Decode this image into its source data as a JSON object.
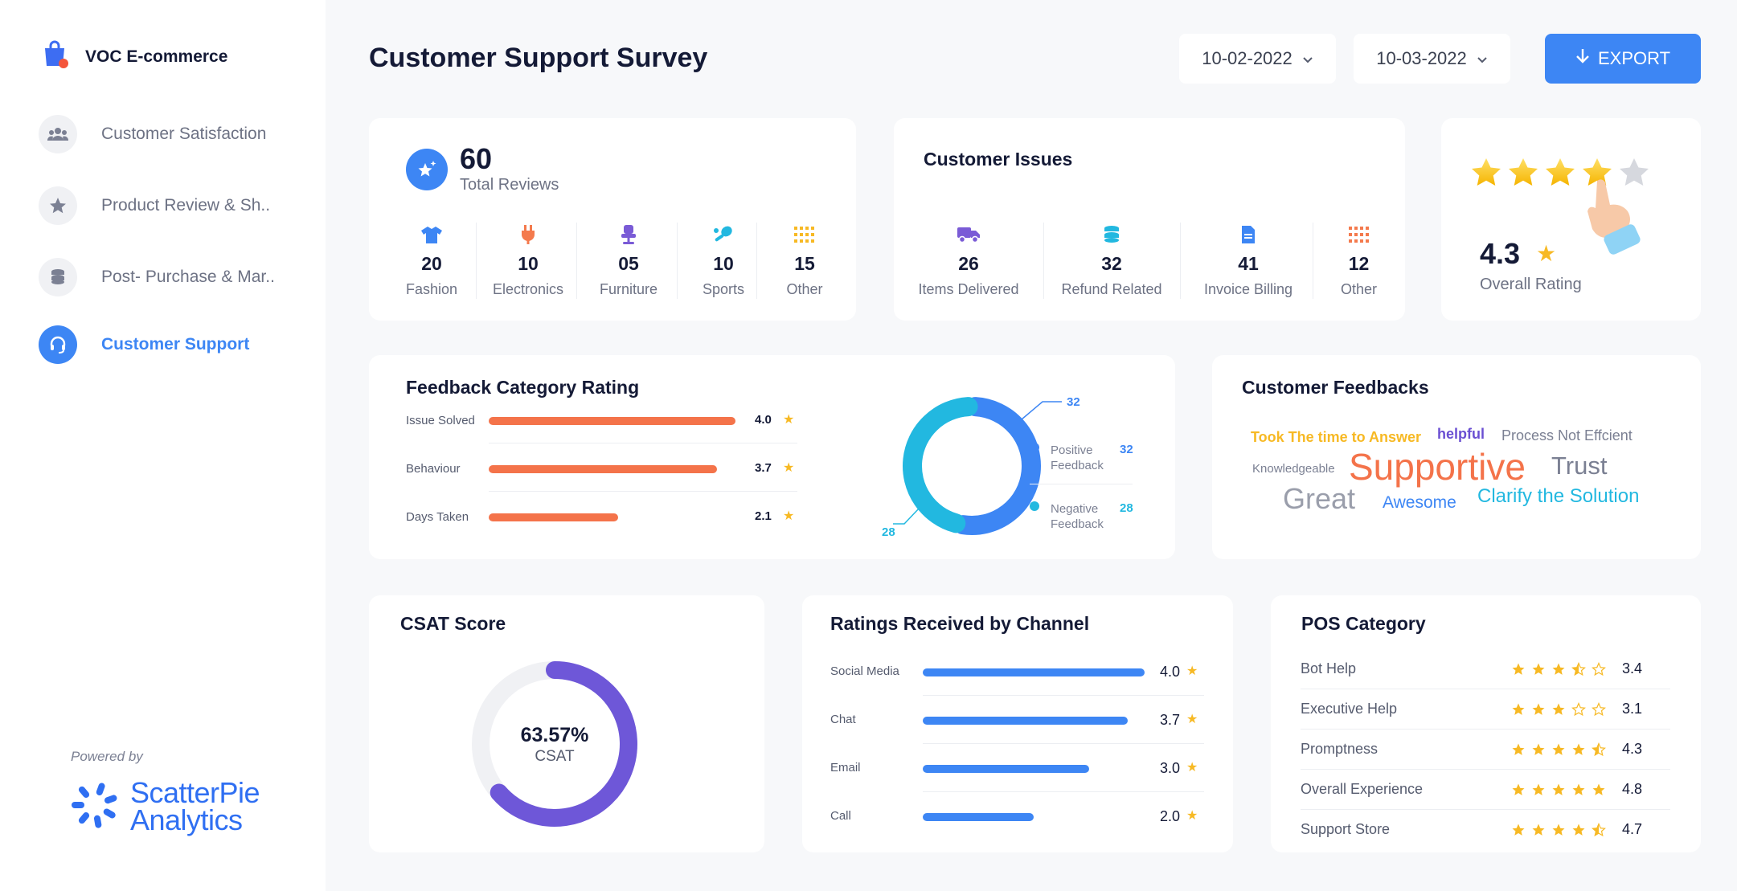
{
  "sidebar": {
    "brand": "VOC E-commerce",
    "items": [
      {
        "label": "Customer Satisfaction",
        "icon": "users-icon",
        "active": false
      },
      {
        "label": "Product Review & Sh..",
        "icon": "star-icon",
        "active": false
      },
      {
        "label": "Post- Purchase & Mar..",
        "icon": "coins-icon",
        "active": false
      },
      {
        "label": "Customer Support",
        "icon": "headset-icon",
        "active": true
      }
    ],
    "powered_by": "Powered by",
    "logo_line1": "ScatterPie",
    "logo_line2": "Analytics"
  },
  "header": {
    "title": "Customer Support Survey",
    "date_from": "10-02-2022",
    "date_to": "10-03-2022",
    "export_label": "EXPORT"
  },
  "total_reviews": {
    "value": "60",
    "label": "Total Reviews",
    "categories": [
      {
        "value": "20",
        "label": "Fashion",
        "icon": "tshirt-icon",
        "color": "#3d86f4"
      },
      {
        "value": "10",
        "label": "Electronics",
        "icon": "plug-icon",
        "color": "#f47a4d"
      },
      {
        "value": "05",
        "label": "Furniture",
        "icon": "chair-icon",
        "color": "#7a5bd6"
      },
      {
        "value": "10",
        "label": "Sports",
        "icon": "racket-icon",
        "color": "#22b8e0"
      },
      {
        "value": "15",
        "label": "Other",
        "icon": "dots-grid-icon",
        "color": "#f7b924"
      }
    ]
  },
  "customer_issues": {
    "title": "Customer Issues",
    "items": [
      {
        "value": "26",
        "label": "Items Delivered",
        "icon": "truck-icon",
        "color": "#7a5bd6"
      },
      {
        "value": "32",
        "label": "Refund Related",
        "icon": "coins-stack-icon",
        "color": "#22b8e0"
      },
      {
        "value": "41",
        "label": "Invoice Billing",
        "icon": "document-icon",
        "color": "#3d86f4"
      },
      {
        "value": "12",
        "label": "Other",
        "icon": "dots-grid-icon",
        "color": "#f47a4d"
      }
    ]
  },
  "overall_rating": {
    "value": "4.3",
    "label": "Overall Rating"
  },
  "feedback_category": {
    "title": "Feedback Category Rating",
    "bars": [
      {
        "label": "Issue Solved",
        "value": 4.0,
        "display": "4.0"
      },
      {
        "label": "Behaviour",
        "value": 3.7,
        "display": "3.7"
      },
      {
        "label": "Days Taken",
        "value": 2.1,
        "display": "2.1"
      }
    ],
    "bar_color": "#f4734a",
    "donut": {
      "positive": {
        "label": "Positive Feedback",
        "value": 32,
        "display": "32",
        "color": "#3d86f4"
      },
      "negative": {
        "label": "Negative Feedback",
        "value": 28,
        "display": "28",
        "color": "#22b8e0"
      }
    }
  },
  "customer_feedbacks": {
    "title": "Customer Feedbacks",
    "words": [
      {
        "text": "Took The time to Answer",
        "color": "#f7b924"
      },
      {
        "text": "helpful",
        "color": "#6a4fd2"
      },
      {
        "text": "Process Not Effcient",
        "color": "#7b8093"
      },
      {
        "text": "Knowledgeable",
        "color": "#7b8093"
      },
      {
        "text": "Supportive",
        "color": "#f4734a"
      },
      {
        "text": "Trust",
        "color": "#7b8093"
      },
      {
        "text": "Great",
        "color": "#9a9eab"
      },
      {
        "text": "Awesome",
        "color": "#3d86f4"
      },
      {
        "text": "Clarify the Solution",
        "color": "#22b8e0"
      }
    ]
  },
  "csat": {
    "title": "CSAT Score",
    "value": 63.57,
    "display": "63.57%",
    "label": "CSAT",
    "color": "#6e57d8"
  },
  "channel_ratings": {
    "title": "Ratings Received by Channel",
    "bar_color": "#3d86f4",
    "bars": [
      {
        "label": "Social Media",
        "value": 4.0,
        "display": "4.0"
      },
      {
        "label": "Chat",
        "value": 3.7,
        "display": "3.7"
      },
      {
        "label": "Email",
        "value": 3.0,
        "display": "3.0"
      },
      {
        "label": "Call",
        "value": 2.0,
        "display": "2.0"
      }
    ]
  },
  "pos_category": {
    "title": "POS Category",
    "rows": [
      {
        "label": "Bot Help",
        "rating": 3.4,
        "display": "3.4"
      },
      {
        "label": "Executive Help",
        "rating": 3.1,
        "display": "3.1"
      },
      {
        "label": "Promptness",
        "rating": 4.3,
        "display": "4.3"
      },
      {
        "label": "Overall Experience",
        "rating": 4.8,
        "display": "4.8"
      },
      {
        "label": "Support Store",
        "rating": 4.7,
        "display": "4.7"
      }
    ]
  }
}
